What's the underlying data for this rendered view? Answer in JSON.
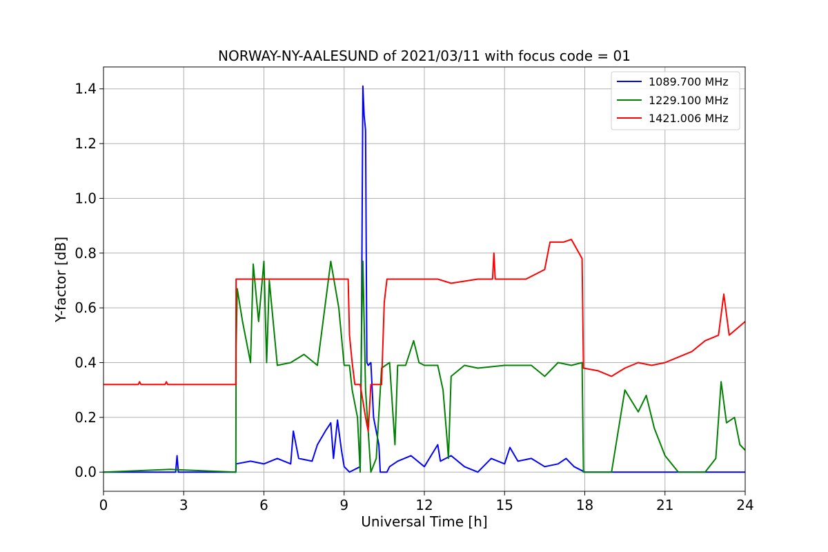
{
  "chart_data": {
    "type": "line",
    "title": "NORWAY-NY-AALESUND of 2021/03/11 with focus code = 01",
    "xlabel": "Universal Time [h]",
    "ylabel": "Y-factor [dB]",
    "xlim": [
      0,
      24
    ],
    "ylim": [
      -0.07,
      1.48
    ],
    "xticks": [
      "0",
      "3",
      "6",
      "9",
      "12",
      "15",
      "18",
      "21",
      "24"
    ],
    "yticks": [
      "0.0",
      "0.2",
      "0.4",
      "0.6",
      "0.8",
      "1.0",
      "1.2",
      "1.4"
    ],
    "grid": true,
    "legend_position": "top-right",
    "series": [
      {
        "name": "1089.700 MHz",
        "color": "#0000ff",
        "points": [
          [
            0,
            0
          ],
          [
            2.7,
            0
          ],
          [
            2.75,
            0.06
          ],
          [
            2.8,
            0
          ],
          [
            4.95,
            0
          ],
          [
            4.96,
            0.03
          ],
          [
            5.5,
            0.04
          ],
          [
            6,
            0.03
          ],
          [
            6.5,
            0.05
          ],
          [
            7,
            0.03
          ],
          [
            7.1,
            0.15
          ],
          [
            7.3,
            0.05
          ],
          [
            7.8,
            0.04
          ],
          [
            8,
            0.1
          ],
          [
            8.3,
            0.15
          ],
          [
            8.5,
            0.18
          ],
          [
            8.6,
            0.05
          ],
          [
            8.75,
            0.19
          ],
          [
            8.9,
            0.08
          ],
          [
            9,
            0.02
          ],
          [
            9.2,
            0
          ],
          [
            9.6,
            0.02
          ],
          [
            9.65,
            0.5
          ],
          [
            9.7,
            1.41
          ],
          [
            9.75,
            1.3
          ],
          [
            9.8,
            1.25
          ],
          [
            9.85,
            0.4
          ],
          [
            9.9,
            0.39
          ],
          [
            10,
            0.4
          ],
          [
            10.1,
            0.2
          ],
          [
            10.3,
            0.1
          ],
          [
            10.35,
            0
          ],
          [
            10.6,
            0
          ],
          [
            10.7,
            0.02
          ],
          [
            11,
            0.04
          ],
          [
            11.5,
            0.06
          ],
          [
            12,
            0.02
          ],
          [
            12.5,
            0.1
          ],
          [
            12.6,
            0.04
          ],
          [
            13,
            0.06
          ],
          [
            13.5,
            0.02
          ],
          [
            14,
            0
          ],
          [
            14.5,
            0.05
          ],
          [
            15,
            0.03
          ],
          [
            15.2,
            0.09
          ],
          [
            15.5,
            0.04
          ],
          [
            16,
            0.05
          ],
          [
            16.5,
            0.02
          ],
          [
            17,
            0.03
          ],
          [
            17.3,
            0.05
          ],
          [
            17.6,
            0.02
          ],
          [
            18,
            0
          ],
          [
            24,
            0
          ]
        ]
      },
      {
        "name": "1229.100 MHz",
        "color": "#008000",
        "points": [
          [
            0,
            0
          ],
          [
            2.5,
            0.01
          ],
          [
            4.95,
            0
          ],
          [
            4.96,
            0.45
          ],
          [
            5,
            0.67
          ],
          [
            5.2,
            0.55
          ],
          [
            5.5,
            0.4
          ],
          [
            5.6,
            0.76
          ],
          [
            5.8,
            0.55
          ],
          [
            6,
            0.77
          ],
          [
            6.1,
            0.4
          ],
          [
            6.2,
            0.7
          ],
          [
            6.5,
            0.39
          ],
          [
            7,
            0.4
          ],
          [
            7.5,
            0.43
          ],
          [
            8,
            0.39
          ],
          [
            8.5,
            0.77
          ],
          [
            8.8,
            0.6
          ],
          [
            9,
            0.39
          ],
          [
            9.2,
            0.39
          ],
          [
            9.3,
            0.3
          ],
          [
            9.5,
            0.2
          ],
          [
            9.6,
            0
          ],
          [
            9.65,
            0.5
          ],
          [
            9.7,
            0.77
          ],
          [
            9.8,
            0.3
          ],
          [
            10,
            0
          ],
          [
            10.2,
            0.05
          ],
          [
            10.4,
            0.38
          ],
          [
            10.7,
            0.4
          ],
          [
            10.9,
            0.1
          ],
          [
            11,
            0.39
          ],
          [
            11.3,
            0.39
          ],
          [
            11.6,
            0.48
          ],
          [
            11.8,
            0.4
          ],
          [
            12,
            0.39
          ],
          [
            12.5,
            0.39
          ],
          [
            12.7,
            0.3
          ],
          [
            12.85,
            0.12
          ],
          [
            12.9,
            0.05
          ],
          [
            13,
            0.35
          ],
          [
            13.5,
            0.39
          ],
          [
            14,
            0.38
          ],
          [
            15,
            0.39
          ],
          [
            15.5,
            0.39
          ],
          [
            16,
            0.39
          ],
          [
            16.5,
            0.35
          ],
          [
            17,
            0.4
          ],
          [
            17.5,
            0.39
          ],
          [
            17.9,
            0.4
          ],
          [
            17.95,
            0
          ],
          [
            19,
            0
          ],
          [
            19.2,
            0.12
          ],
          [
            19.5,
            0.3
          ],
          [
            20,
            0.22
          ],
          [
            20.3,
            0.28
          ],
          [
            20.6,
            0.16
          ],
          [
            21,
            0.06
          ],
          [
            21.5,
            0
          ],
          [
            22.5,
            0
          ],
          [
            22.9,
            0.05
          ],
          [
            23.1,
            0.33
          ],
          [
            23.3,
            0.18
          ],
          [
            23.6,
            0.2
          ],
          [
            23.8,
            0.1
          ],
          [
            24,
            0.08
          ]
        ]
      },
      {
        "name": "1421.006 MHz",
        "color": "#ff0000",
        "points": [
          [
            0,
            0.32
          ],
          [
            1.3,
            0.32
          ],
          [
            1.35,
            0.33
          ],
          [
            1.4,
            0.32
          ],
          [
            2.3,
            0.32
          ],
          [
            2.35,
            0.33
          ],
          [
            2.4,
            0.32
          ],
          [
            4.95,
            0.32
          ],
          [
            4.96,
            0.705
          ],
          [
            9.15,
            0.705
          ],
          [
            9.2,
            0.5
          ],
          [
            9.3,
            0.4
          ],
          [
            9.4,
            0.32
          ],
          [
            9.6,
            0.32
          ],
          [
            9.8,
            0.2
          ],
          [
            9.9,
            0.15
          ],
          [
            10,
            0.32
          ],
          [
            10.4,
            0.32
          ],
          [
            10.5,
            0.62
          ],
          [
            10.6,
            0.705
          ],
          [
            12.5,
            0.705
          ],
          [
            13,
            0.69
          ],
          [
            14,
            0.705
          ],
          [
            14.55,
            0.705
          ],
          [
            14.6,
            0.8
          ],
          [
            14.65,
            0.705
          ],
          [
            15.8,
            0.705
          ],
          [
            16.5,
            0.74
          ],
          [
            16.7,
            0.84
          ],
          [
            17.2,
            0.84
          ],
          [
            17.5,
            0.85
          ],
          [
            17.9,
            0.78
          ],
          [
            17.95,
            0.38
          ],
          [
            18.5,
            0.37
          ],
          [
            19,
            0.35
          ],
          [
            19.5,
            0.38
          ],
          [
            20,
            0.4
          ],
          [
            20.5,
            0.39
          ],
          [
            21,
            0.4
          ],
          [
            21.5,
            0.42
          ],
          [
            22,
            0.44
          ],
          [
            22.5,
            0.48
          ],
          [
            23,
            0.5
          ],
          [
            23.2,
            0.65
          ],
          [
            23.4,
            0.5
          ],
          [
            24,
            0.55
          ]
        ]
      }
    ]
  }
}
